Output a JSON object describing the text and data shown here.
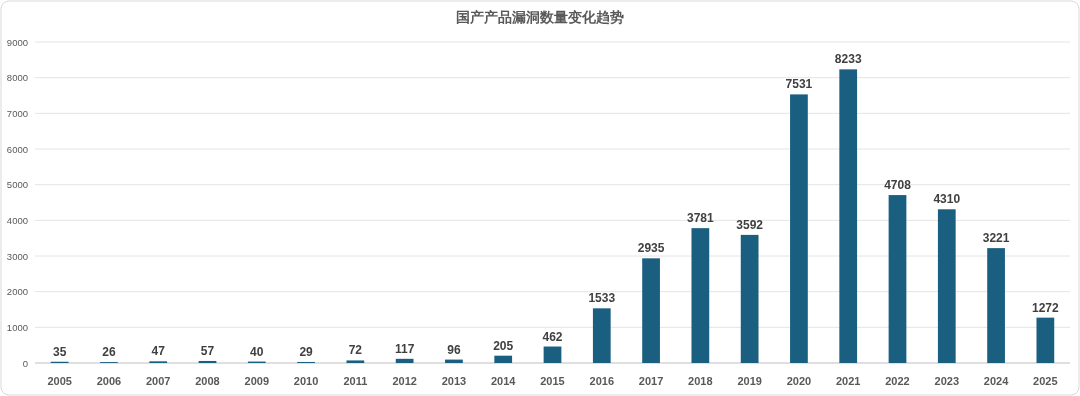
{
  "chart_data": {
    "type": "bar",
    "title": "国产产品漏洞数量变化趋势",
    "categories": [
      "2005",
      "2006",
      "2007",
      "2008",
      "2009",
      "2010",
      "2011",
      "2012",
      "2013",
      "2014",
      "2015",
      "2016",
      "2017",
      "2018",
      "2019",
      "2020",
      "2021",
      "2022",
      "2023",
      "2024",
      "2025"
    ],
    "values": [
      35,
      26,
      47,
      57,
      40,
      29,
      72,
      117,
      96,
      205,
      462,
      1533,
      2935,
      3781,
      3592,
      7531,
      8233,
      4708,
      4310,
      3221,
      1272
    ],
    "color": "#1b5f80",
    "ylim": [
      0,
      9000
    ],
    "yticks": [
      0,
      1000,
      2000,
      3000,
      4000,
      5000,
      6000,
      7000,
      8000,
      9000
    ],
    "grid": "y",
    "data_labels": true
  }
}
